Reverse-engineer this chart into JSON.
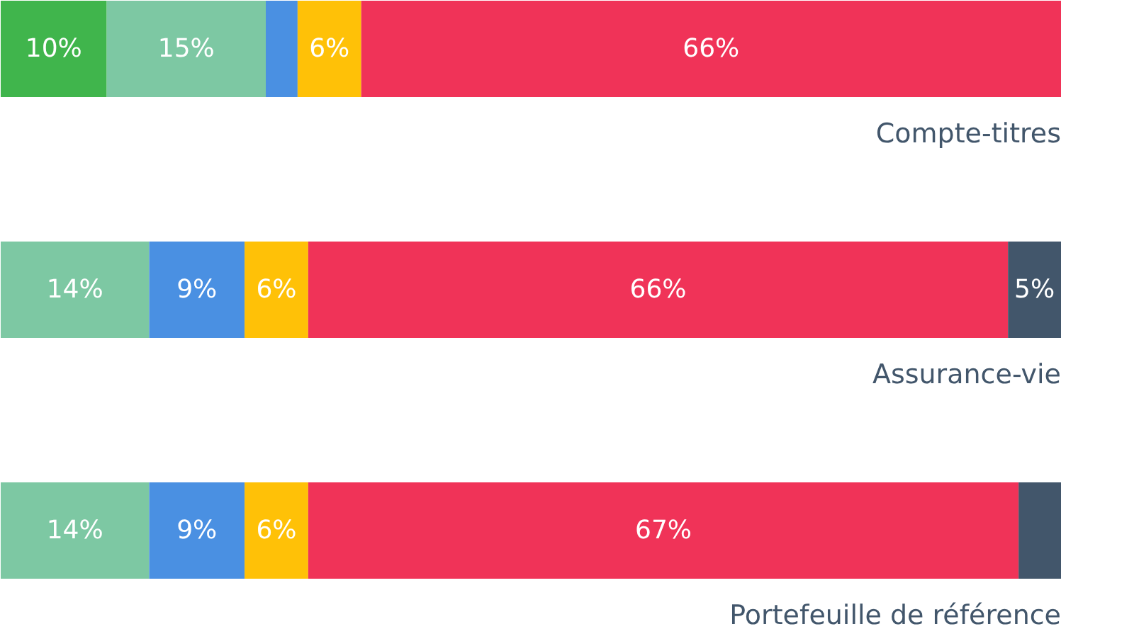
{
  "chart_data": {
    "type": "bar",
    "orientation": "horizontal",
    "stacked": true,
    "categories": [
      "Compte-titres",
      "Assurance-vie",
      "Portefeuille de référence"
    ],
    "series": [
      {
        "color": "#40b54c",
        "values": [
          10,
          null,
          null
        ],
        "value_labels": [
          "10%",
          null,
          null
        ]
      },
      {
        "color": "#7dc8a3",
        "values": [
          15,
          14,
          14
        ],
        "value_labels": [
          "15%",
          "14%",
          "14%"
        ]
      },
      {
        "color": "#4a90e2",
        "values": [
          3,
          9,
          9
        ],
        "value_labels": [
          null,
          "9%",
          "9%"
        ]
      },
      {
        "color": "#ffc107",
        "values": [
          6,
          6,
          6
        ],
        "value_labels": [
          "6%",
          "6%",
          "6%"
        ]
      },
      {
        "color": "#f03358",
        "values": [
          66,
          66,
          67
        ],
        "value_labels": [
          "66%",
          "66%",
          "67%"
        ]
      },
      {
        "color": "#42566b",
        "values": [
          null,
          5,
          4
        ],
        "value_labels": [
          null,
          "5%",
          null
        ]
      }
    ]
  }
}
